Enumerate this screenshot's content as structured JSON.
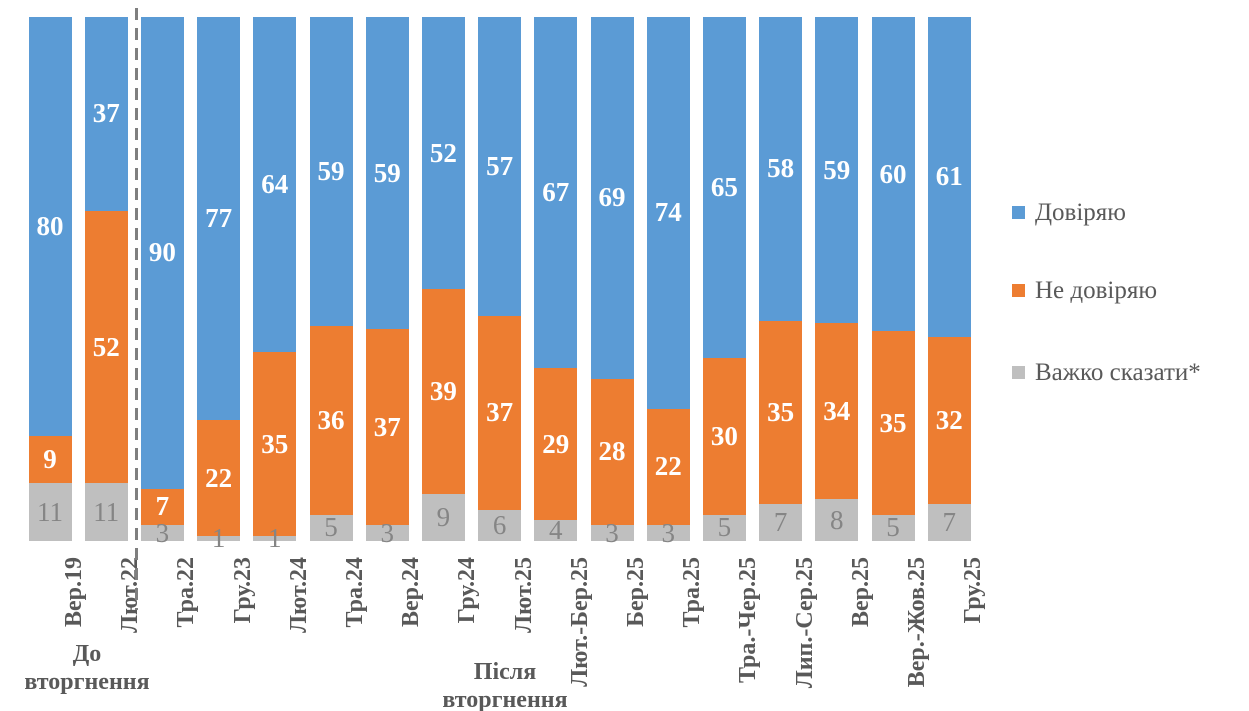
{
  "chart_data": {
    "type": "bar",
    "variant": "stacked-100-percent-column",
    "title": "",
    "xlabel": "",
    "ylabel": "",
    "ylim": [
      0,
      100
    ],
    "grid": false,
    "legend_position": "right",
    "categories": [
      "Вер.19",
      "Лют.22",
      "Тра.22",
      "Гру.23",
      "Лют.24",
      "Тра.24",
      "Вер.24",
      "Гру.24",
      "Лют.25",
      "Лют.-Бер.25",
      "Бер.25",
      "Тра.25",
      "Тра.-Чер.25",
      "Лип.-Сер.25",
      "Вер.25",
      "Вер.-Жов.25",
      "Гру.25"
    ],
    "series": [
      {
        "name": "Довіряю",
        "color": "#5B9BD5",
        "label_color": "#FFFFFF",
        "values": [
          80,
          37,
          90,
          77,
          64,
          59,
          59,
          52,
          57,
          67,
          69,
          74,
          65,
          58,
          59,
          60,
          61
        ]
      },
      {
        "name": "Не довіряю",
        "color": "#ED7D31",
        "label_color": "#FFFFFF",
        "values": [
          9,
          52,
          7,
          22,
          35,
          36,
          37,
          39,
          37,
          29,
          28,
          22,
          30,
          35,
          34,
          35,
          32
        ]
      },
      {
        "name": "Важко сказати*",
        "color": "#BFBFBF",
        "label_color": "#858585",
        "values": [
          11,
          11,
          3,
          1,
          1,
          5,
          3,
          9,
          6,
          4,
          3,
          3,
          5,
          7,
          8,
          5,
          7
        ]
      }
    ],
    "group_annotations": [
      {
        "label": "До вторгнення",
        "categories": [
          "Вер.19",
          "Лют.22"
        ]
      },
      {
        "label": "Після вторгнення",
        "categories": [
          "Тра.22",
          "Гру.25"
        ]
      }
    ],
    "divider": {
      "style": "dashed",
      "color": "#7F7F7F",
      "after_category": "Лют.22"
    }
  }
}
